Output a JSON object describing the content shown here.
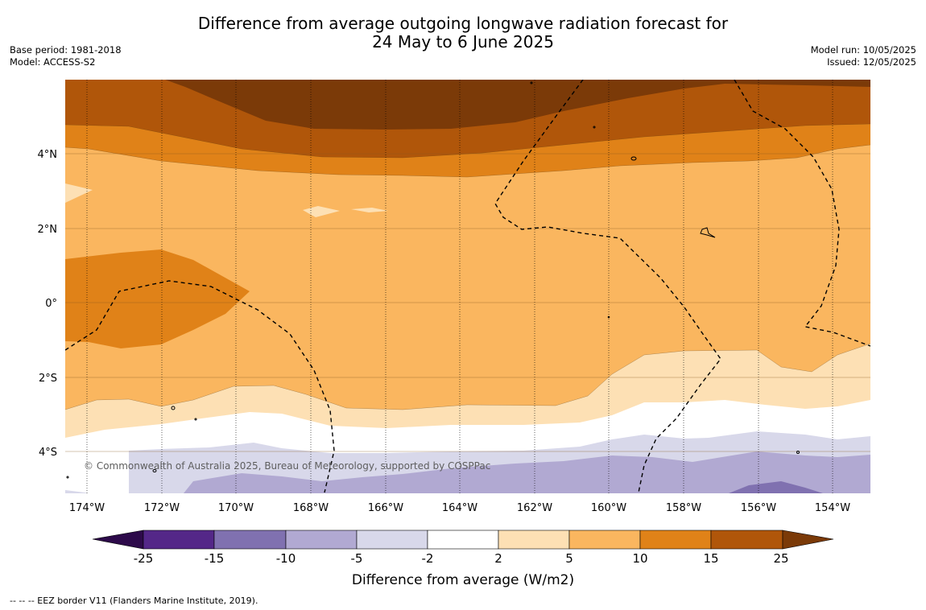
{
  "header": {
    "title_line1": "Difference from average outgoing longwave radiation forecast for",
    "title_line2": "24 May to 6 June 2025",
    "base_period": "Base period: 1981-2018",
    "model": "Model: ACCESS-S2",
    "model_run": "Model run: 10/05/2025",
    "issued": "Issued: 12/05/2025"
  },
  "map": {
    "lon_ticks": [
      "174°W",
      "172°W",
      "170°W",
      "168°W",
      "166°W",
      "164°W",
      "162°W",
      "160°W",
      "158°W",
      "156°W",
      "154°W"
    ],
    "lat_ticks": [
      "4°N",
      "2°N",
      "0°",
      "2°S",
      "4°S"
    ],
    "copyright": "© Commonwealth of Australia 2025, Bureau of Meteorology, supported by COSPPac",
    "colors": {
      "brown_25": "#7b3a08",
      "brown_15": "#b0560a",
      "orange_10": "#e08218",
      "orange_5": "#fab65f",
      "cream_2": "#fde0b4",
      "white": "#ffffff",
      "lav_m5": "#d8d8ea",
      "lav_m10": "#b1a9d2",
      "purple_m15": "#8071b0",
      "purple_m25": "#542788",
      "purple_min": "#2d0a4a"
    }
  },
  "legend": {
    "labels": [
      "-25",
      "-15",
      "-10",
      "-5",
      "-2",
      "2",
      "5",
      "10",
      "15",
      "25"
    ],
    "title": "Difference from average (W/m2)"
  },
  "footnote": "--  --  -- EEZ border V11 (Flanders Marine Institute, 2019)."
}
